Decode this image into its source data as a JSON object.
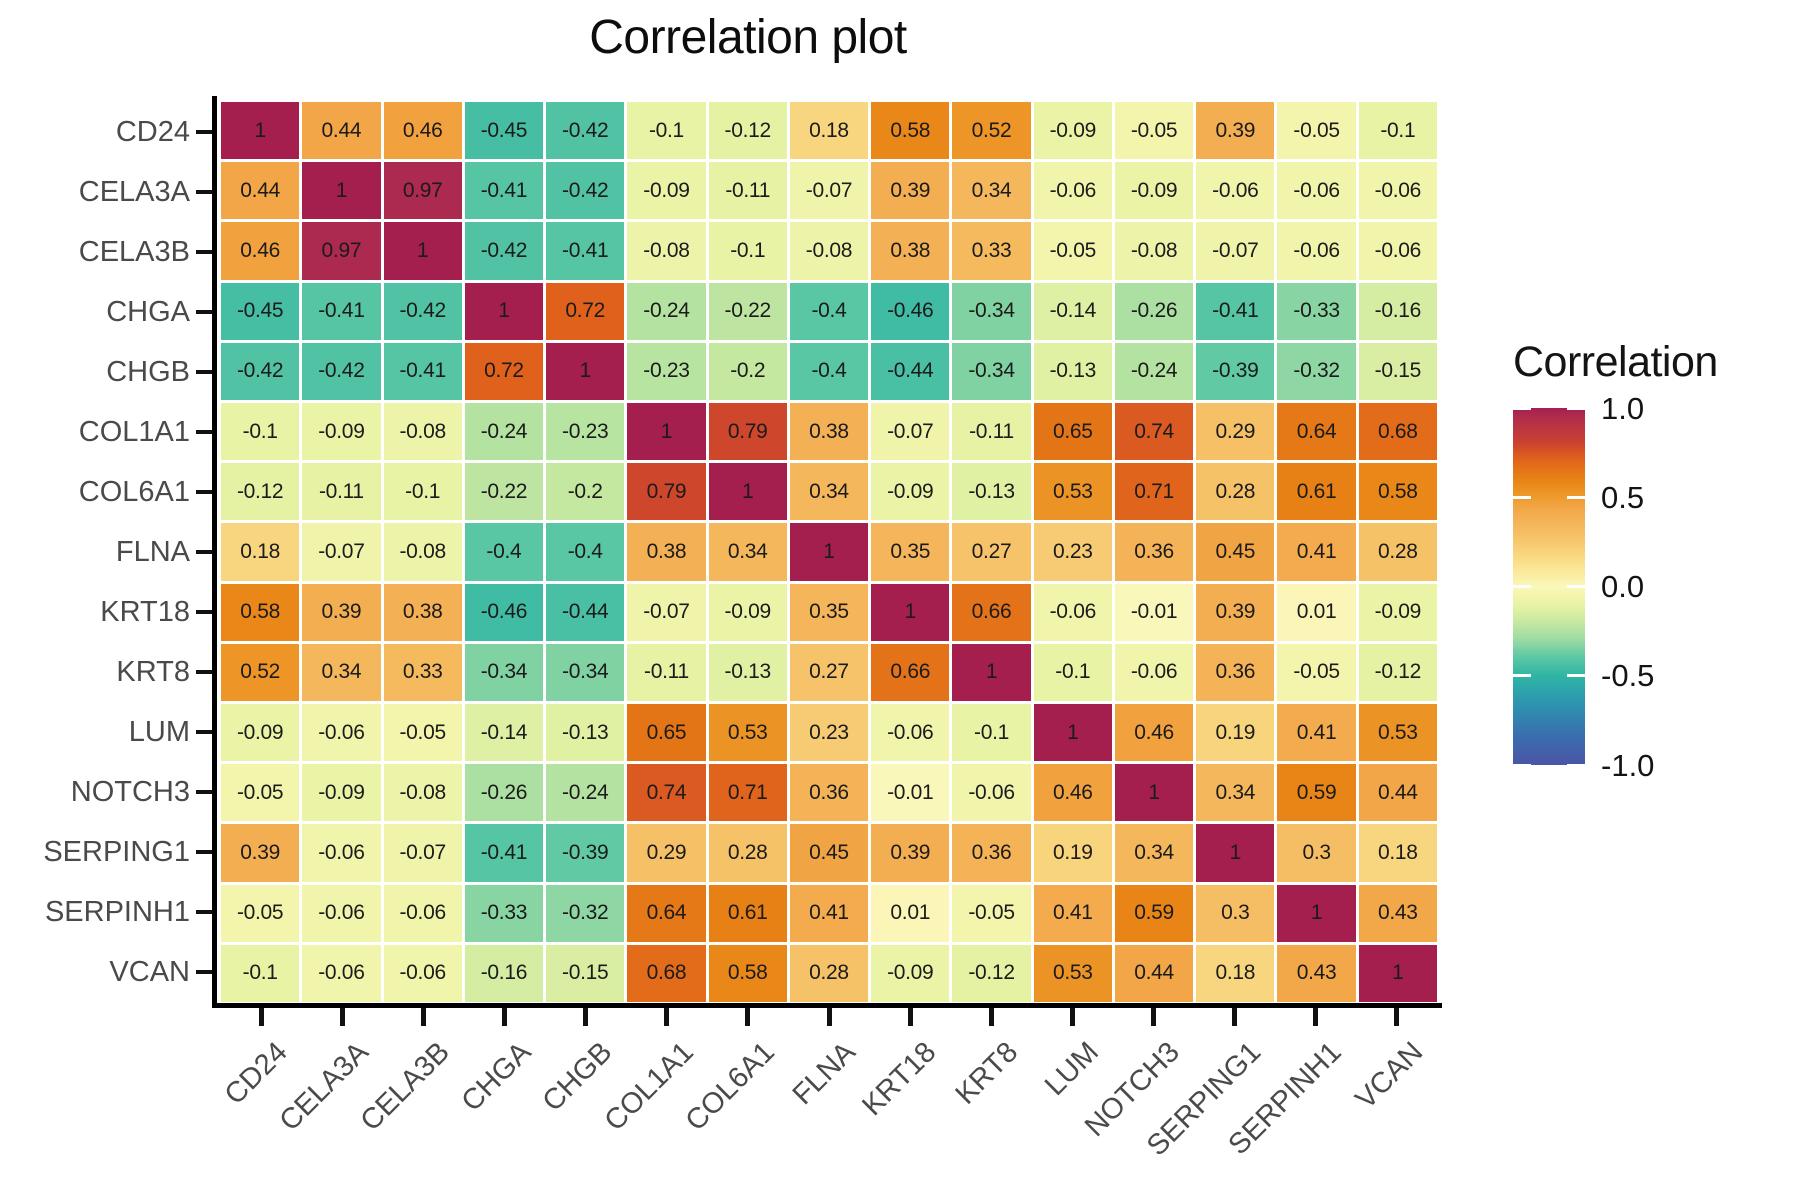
{
  "title": "Correlation plot",
  "chart_data": {
    "type": "heatmap",
    "title": "Correlation plot",
    "xlabel": "",
    "ylabel": "",
    "categories": [
      "CD24",
      "CELA3A",
      "CELA3B",
      "CHGA",
      "CHGB",
      "COL1A1",
      "COL6A1",
      "FLNA",
      "KRT18",
      "KRT8",
      "LUM",
      "NOTCH3",
      "SERPING1",
      "SERPINH1",
      "VCAN"
    ],
    "matrix": [
      [
        1,
        0.44,
        0.46,
        -0.45,
        -0.42,
        -0.1,
        -0.12,
        0.18,
        0.58,
        0.52,
        -0.09,
        -0.05,
        0.39,
        -0.05,
        -0.1
      ],
      [
        0.44,
        1,
        0.97,
        -0.41,
        -0.42,
        -0.09,
        -0.11,
        -0.07,
        0.39,
        0.34,
        -0.06,
        -0.09,
        -0.06,
        -0.06,
        -0.06
      ],
      [
        0.46,
        0.97,
        1,
        -0.42,
        -0.41,
        -0.08,
        -0.1,
        -0.08,
        0.38,
        0.33,
        -0.05,
        -0.08,
        -0.07,
        -0.06,
        -0.06
      ],
      [
        -0.45,
        -0.41,
        -0.42,
        1,
        0.72,
        -0.24,
        -0.22,
        -0.4,
        -0.46,
        -0.34,
        -0.14,
        -0.26,
        -0.41,
        -0.33,
        -0.16
      ],
      [
        -0.42,
        -0.42,
        -0.41,
        0.72,
        1,
        -0.23,
        -0.2,
        -0.4,
        -0.44,
        -0.34,
        -0.13,
        -0.24,
        -0.39,
        -0.32,
        -0.15
      ],
      [
        -0.1,
        -0.09,
        -0.08,
        -0.24,
        -0.23,
        1,
        0.79,
        0.38,
        -0.07,
        -0.11,
        0.65,
        0.74,
        0.29,
        0.64,
        0.68
      ],
      [
        -0.12,
        -0.11,
        -0.1,
        -0.22,
        -0.2,
        0.79,
        1,
        0.34,
        -0.09,
        -0.13,
        0.53,
        0.71,
        0.28,
        0.61,
        0.58
      ],
      [
        0.18,
        -0.07,
        -0.08,
        -0.4,
        -0.4,
        0.38,
        0.34,
        1,
        0.35,
        0.27,
        0.23,
        0.36,
        0.45,
        0.41,
        0.28
      ],
      [
        0.58,
        0.39,
        0.38,
        -0.46,
        -0.44,
        -0.07,
        -0.09,
        0.35,
        1,
        0.66,
        -0.06,
        -0.01,
        0.39,
        0.01,
        -0.09
      ],
      [
        0.52,
        0.34,
        0.33,
        -0.34,
        -0.34,
        -0.11,
        -0.13,
        0.27,
        0.66,
        1,
        -0.1,
        -0.06,
        0.36,
        -0.05,
        -0.12
      ],
      [
        -0.09,
        -0.06,
        -0.05,
        -0.14,
        -0.13,
        0.65,
        0.53,
        0.23,
        -0.06,
        -0.1,
        1,
        0.46,
        0.19,
        0.41,
        0.53
      ],
      [
        -0.05,
        -0.09,
        -0.08,
        -0.26,
        -0.24,
        0.74,
        0.71,
        0.36,
        -0.01,
        -0.06,
        0.46,
        1,
        0.34,
        0.59,
        0.44
      ],
      [
        0.39,
        -0.06,
        -0.07,
        -0.41,
        -0.39,
        0.29,
        0.28,
        0.45,
        0.39,
        0.36,
        0.19,
        0.34,
        1,
        0.3,
        0.18
      ],
      [
        -0.05,
        -0.06,
        -0.06,
        -0.33,
        -0.32,
        0.64,
        0.61,
        0.41,
        0.01,
        -0.05,
        0.41,
        0.59,
        0.3,
        1,
        0.43
      ],
      [
        -0.1,
        -0.06,
        -0.06,
        -0.16,
        -0.15,
        0.68,
        0.58,
        0.28,
        -0.09,
        -0.12,
        0.53,
        0.44,
        0.18,
        0.43,
        1
      ]
    ],
    "value_range": [
      -1,
      1
    ],
    "grid": false,
    "legend": {
      "title": "Correlation",
      "position": "right",
      "tick_labels": [
        "1.0",
        "0.5",
        "0.0",
        "-0.5",
        "-1.0"
      ],
      "tick_values": [
        1,
        0.5,
        0,
        -0.5,
        -1
      ]
    },
    "color_scale": [
      [
        1.0,
        "#A51F4E"
      ],
      [
        0.97,
        "#AC2950"
      ],
      [
        0.8,
        "#CB432F"
      ],
      [
        0.72,
        "#DF611C"
      ],
      [
        0.6,
        "#E88314"
      ],
      [
        0.5,
        "#EE9A2C"
      ],
      [
        0.44,
        "#F2A647"
      ],
      [
        0.35,
        "#F5B55A"
      ],
      [
        0.25,
        "#F7C76E"
      ],
      [
        0.15,
        "#F9DC86"
      ],
      [
        0.05,
        "#FAEFA5"
      ],
      [
        0.0,
        "#FBF8BC"
      ],
      [
        -0.05,
        "#F3F5AC"
      ],
      [
        -0.12,
        "#E5F2A4"
      ],
      [
        -0.2,
        "#C5E8A0"
      ],
      [
        -0.3,
        "#9BDAA3"
      ],
      [
        -0.4,
        "#5AC7A4"
      ],
      [
        -0.5,
        "#2FB5A4"
      ],
      [
        -0.65,
        "#2C96AF"
      ],
      [
        -0.85,
        "#3B6BAE"
      ],
      [
        -1.0,
        "#4B55A5"
      ]
    ]
  },
  "colors": {
    "background": "#ffffff",
    "axis_line": "#000000",
    "axis_text": "#4a4a4a",
    "cell_text": "#1b1b1b",
    "cell_gap": "#ffffff",
    "legend_text": "#141414"
  }
}
